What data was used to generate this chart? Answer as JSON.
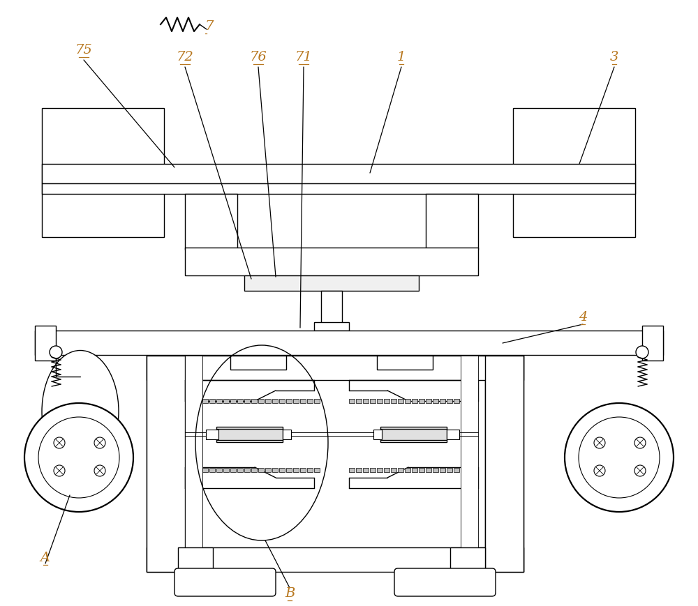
{
  "bg_color": "#ffffff",
  "line_color": "#000000",
  "label_color": "#b87820",
  "fig_width": 10.0,
  "fig_height": 8.69,
  "lw": 1.0,
  "lw_thick": 1.6
}
